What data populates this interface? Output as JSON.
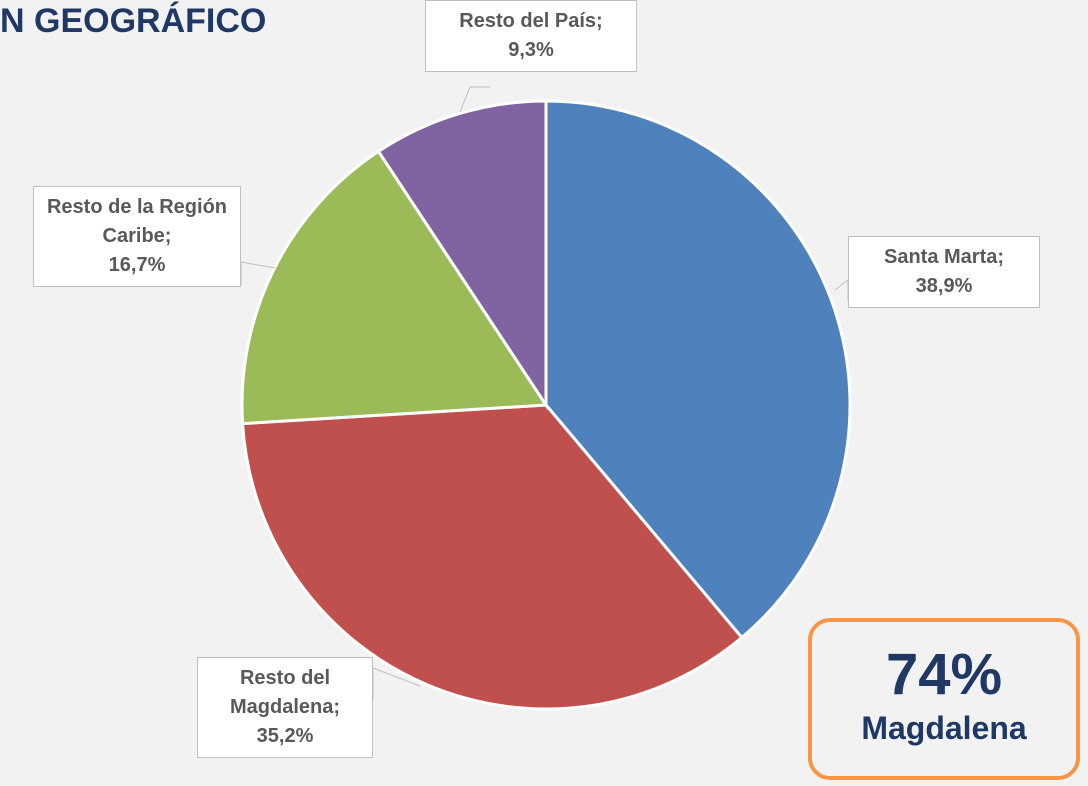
{
  "chart_data": {
    "type": "pie",
    "title": "N GEOGRÁFICO",
    "categories": [
      "Santa Marta;",
      "Resto del Magdalena;",
      "Resto de la Región Caribe;",
      "Resto del País;"
    ],
    "values": [
      38.9,
      35.2,
      16.7,
      9.3
    ],
    "value_labels": [
      "38,9%",
      "35,2%",
      "16,7%",
      "9,3%"
    ],
    "colors": [
      "#4f81bd",
      "#c0504d",
      "#9bbb59",
      "#8064a2"
    ],
    "annotations": [
      {
        "text": "74%"
      },
      {
        "text": "Magdalena"
      }
    ]
  }
}
